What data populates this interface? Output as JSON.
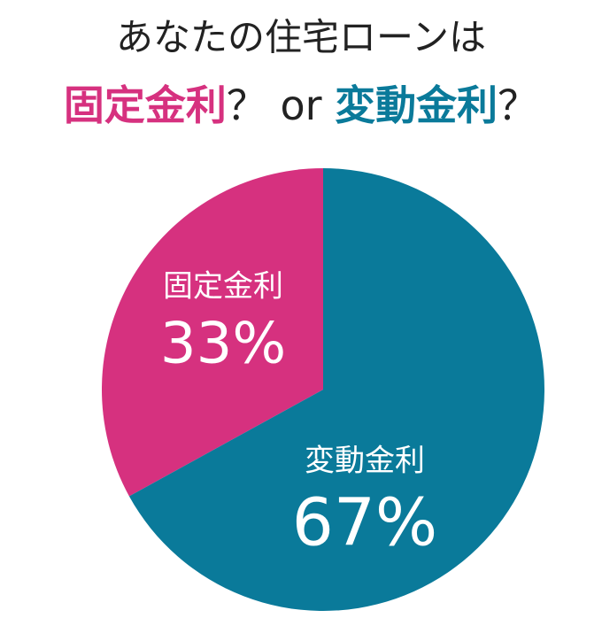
{
  "chart_data": {
    "type": "pie",
    "title": "あなたの住宅ローンは",
    "subtitle_parts": [
      "固定金利",
      "？ or ",
      "変動金利",
      "？"
    ],
    "subtitle_colors": [
      "#d6317f",
      "#222222",
      "#0a7a9a",
      "#222222"
    ],
    "categories": [
      "固定金利",
      "変動金利"
    ],
    "values": [
      33,
      67
    ],
    "value_labels": [
      "33%",
      "67%"
    ],
    "colors": [
      "#d6317f",
      "#0a7a9a"
    ]
  }
}
